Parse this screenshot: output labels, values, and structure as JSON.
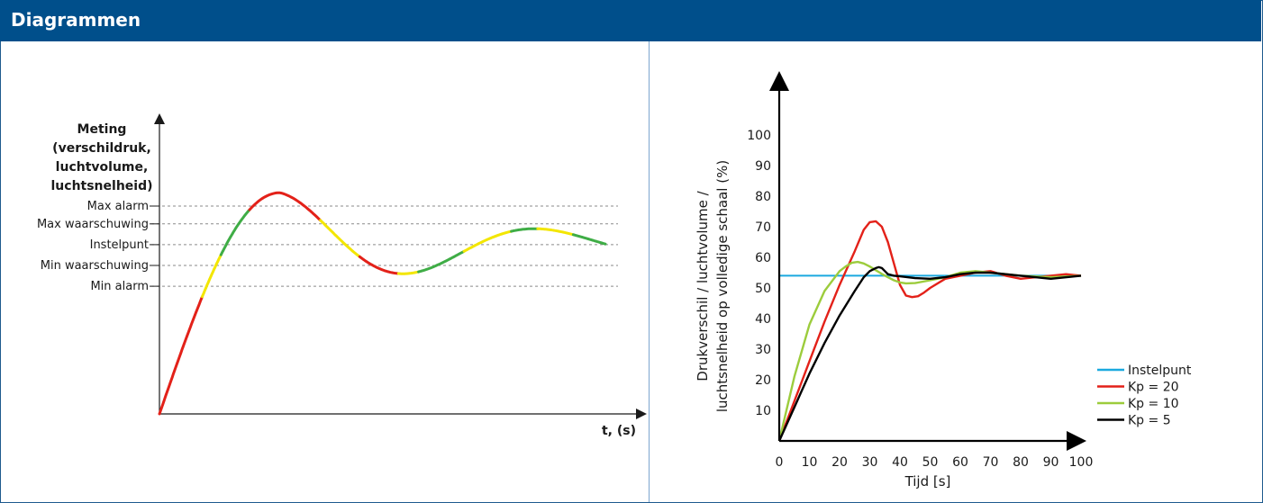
{
  "header": {
    "title": "Diagrammen"
  },
  "colors": {
    "header_bg": "#004f8b",
    "red": "#e32119",
    "yellow": "#f3e600",
    "green": "#3fad46",
    "cyan": "#1ba9df",
    "lime": "#9ccc3c",
    "black": "#000000"
  },
  "chart_data": [
    {
      "type": "line",
      "title": "",
      "ylabel_lines": [
        "Meting",
        "(verschildruk,",
        "luchtvolume,",
        "luchtsnelheid)"
      ],
      "xlabel": "t, (s)",
      "threshold_labels": [
        "Max alarm",
        "Max waarschuwing",
        "Instelpunt",
        "Min waarschuwing",
        "Min alarm"
      ],
      "thresholds": [
        0.7,
        0.64,
        0.57,
        0.5,
        0.43
      ],
      "signal_segments": [
        {
          "color": "red",
          "from": 0.0,
          "to": 0.096
        },
        {
          "color": "yellow",
          "from": 0.096,
          "to": 0.138
        },
        {
          "color": "green",
          "from": 0.138,
          "to": 0.202
        },
        {
          "color": "red",
          "from": 0.202,
          "to": 0.361
        },
        {
          "color": "yellow",
          "from": 0.361,
          "to": 0.449
        },
        {
          "color": "red",
          "from": 0.449,
          "to": 0.536
        },
        {
          "color": "yellow",
          "from": 0.536,
          "to": 0.581
        },
        {
          "color": "green",
          "from": 0.581,
          "to": 0.683
        },
        {
          "color": "yellow",
          "from": 0.683,
          "to": 0.789
        },
        {
          "color": "green",
          "from": 0.789,
          "to": 0.848
        },
        {
          "color": "yellow",
          "from": 0.848,
          "to": 0.928
        },
        {
          "color": "green",
          "from": 0.928,
          "to": 1.0
        }
      ]
    },
    {
      "type": "line",
      "title": "",
      "xlabel": "Tijd [s]",
      "ylabel_lines": [
        "Drukverschil / luchtvolume /",
        "luchtsnelheid op volledige schaal (%)"
      ],
      "xlim": [
        0,
        100
      ],
      "ylim": [
        0,
        100
      ],
      "x_ticks": [
        "0",
        "10",
        "20",
        "30",
        "40",
        "50",
        "60",
        "70",
        "80",
        "90",
        "100"
      ],
      "y_ticks": [
        "10",
        "20",
        "30",
        "40",
        "50",
        "60",
        "70",
        "80",
        "90",
        "100"
      ],
      "legend_position": "bottom-right",
      "series": [
        {
          "name": "Instelpunt",
          "color": "cyan",
          "x": [
            0,
            100
          ],
          "y": [
            54,
            54
          ]
        },
        {
          "name": "Kp = 20",
          "color": "red",
          "x": [
            0,
            5,
            10,
            15,
            20,
            25,
            28,
            30,
            32,
            34,
            36,
            38,
            40,
            42,
            44,
            46,
            48,
            50,
            55,
            60,
            65,
            70,
            75,
            80,
            85,
            90,
            95,
            100
          ],
          "y": [
            0,
            13,
            26,
            39,
            51,
            62,
            69,
            71.5,
            71.8,
            70,
            65,
            58,
            51,
            47.5,
            47,
            47.3,
            48.5,
            50,
            53,
            54,
            55,
            55.5,
            54,
            53,
            53.5,
            54,
            54.5,
            54
          ]
        },
        {
          "name": "Kp = 10",
          "color": "lime",
          "x": [
            0,
            5,
            10,
            15,
            20,
            22,
            24,
            26,
            28,
            30,
            32,
            34,
            36,
            38,
            40,
            42,
            45,
            50,
            55,
            60,
            65,
            70,
            80,
            90,
            100
          ],
          "y": [
            0,
            21,
            38,
            49,
            55.5,
            57,
            58.2,
            58.5,
            58,
            57,
            55.8,
            54.6,
            53.5,
            52.5,
            51.8,
            51.5,
            51.6,
            52.5,
            53.5,
            55,
            55.5,
            55,
            54,
            53.5,
            54
          ]
        },
        {
          "name": "Kp = 5",
          "color": "black",
          "x": [
            0,
            5,
            10,
            15,
            20,
            25,
            28,
            30,
            32,
            33,
            34,
            35,
            36,
            38,
            40,
            45,
            50,
            55,
            60,
            65,
            70,
            80,
            90,
            100
          ],
          "y": [
            0,
            11,
            22,
            32,
            41,
            49,
            53.5,
            55.5,
            56.5,
            56.8,
            56.5,
            55.5,
            54.5,
            54,
            53.8,
            53.2,
            53,
            53.5,
            54.5,
            55,
            55,
            54,
            53,
            54
          ]
        }
      ]
    }
  ]
}
